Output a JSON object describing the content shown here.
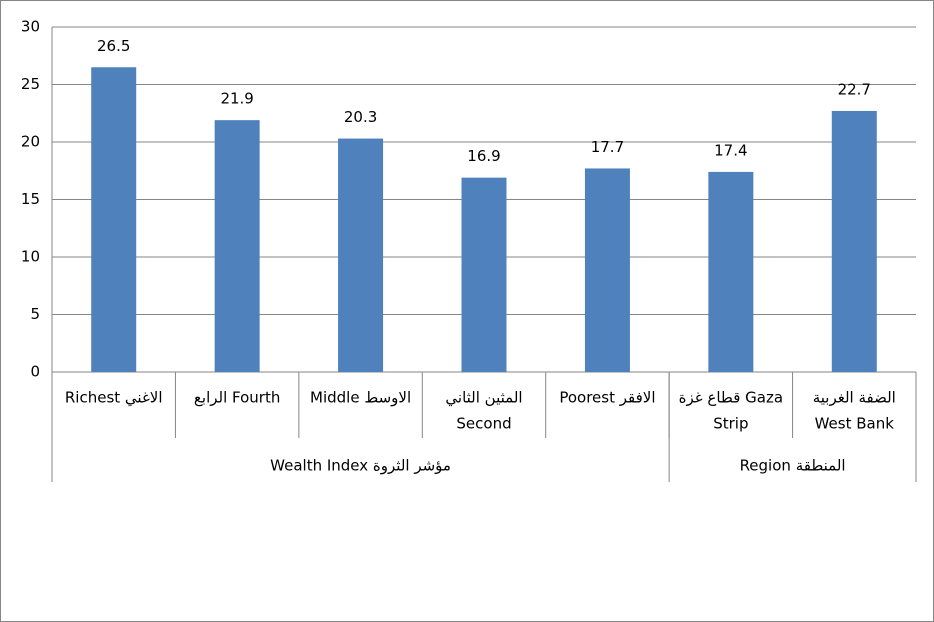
{
  "chart_data": {
    "type": "bar",
    "categories": [
      "Richest الاغني",
      "الرابع  Fourth",
      "Middle الاوسط",
      [
        "المثين الثاني",
        "Second"
      ],
      "Poorest الافقر",
      [
        "قطاع غزة  Gaza",
        "Strip"
      ],
      [
        "الضفة الغربية",
        "West Bank"
      ]
    ],
    "category_groups": [
      {
        "name": "Wealth Index   مؤشر الثروة",
        "count": 5
      },
      {
        "name": "Region   المنطقة",
        "count": 2
      }
    ],
    "values": [
      26.5,
      21.9,
      20.3,
      16.9,
      17.7,
      17.4,
      22.7
    ],
    "color": "#4f81bd",
    "ylim": [
      0,
      30
    ],
    "yticks": [
      0,
      5,
      10,
      15,
      20,
      25,
      30
    ],
    "grid": true
  }
}
